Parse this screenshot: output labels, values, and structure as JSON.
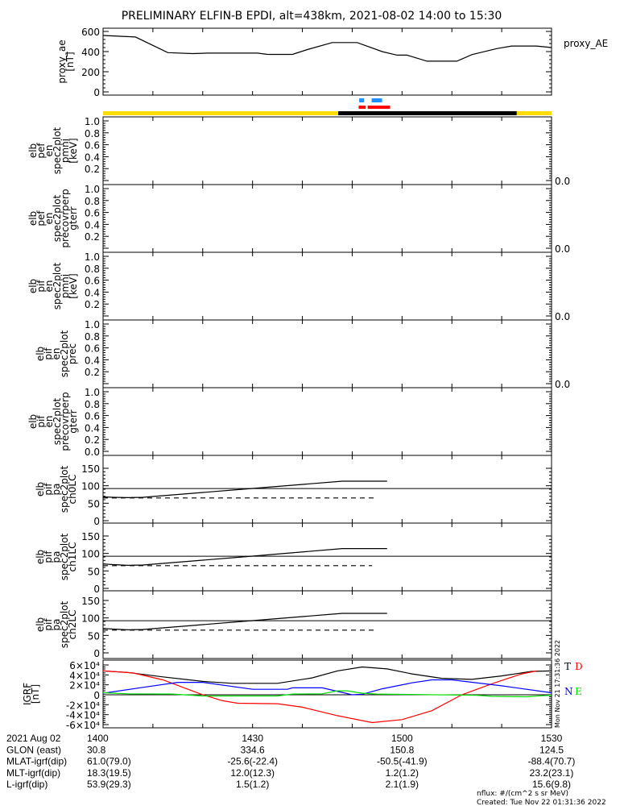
{
  "title": "PRELIMINARY ELFIN-B EPDI, alt=438km, 2021-08-02 14:00 to 15:30",
  "time_axis": {
    "start_label": "1400",
    "range_minutes": 90,
    "tick_minutes": 10
  },
  "indicators": {
    "blue_segments": [
      [
        51.4,
        52.4
      ],
      [
        53.9,
        56.0
      ]
    ],
    "red_segments": [
      [
        51.3,
        52.7
      ],
      [
        53.1,
        57.6
      ]
    ],
    "shadow_segment": [
      47.2,
      83.0
    ],
    "colors": {
      "blue": "#1e90ff",
      "red": "#ff0000",
      "sunlit": "#ffdd00",
      "shadow": "#000000"
    }
  },
  "chart_data": [
    {
      "id": "ae",
      "type": "line",
      "ylabel": [
        "proxy_ae",
        "[nT]"
      ],
      "ylim": [
        0,
        600
      ],
      "yticks": [
        {
          "v": 0,
          "label": "0"
        },
        {
          "v": 200,
          "label": "200"
        },
        {
          "v": 400,
          "label": "400"
        },
        {
          "v": 600,
          "label": "600"
        }
      ],
      "legend": "proxy_AE",
      "series": [
        {
          "name": "proxy_AE",
          "color": "#000000",
          "t": [
            0,
            6.5,
            13,
            18,
            21,
            31,
            33,
            38,
            41,
            46,
            51,
            56,
            59,
            61,
            65,
            71,
            74,
            79,
            82,
            87,
            90
          ],
          "y": [
            560,
            545,
            390,
            380,
            385,
            385,
            372,
            372,
            420,
            490,
            490,
            400,
            365,
            365,
            305,
            305,
            370,
            430,
            455,
            455,
            440
          ]
        }
      ]
    },
    {
      "id": "pef-pmni",
      "type": "line",
      "ylabel": [
        "elb",
        "pef",
        "en",
        "spec2plot",
        "pmni",
        "[keV]"
      ],
      "ylim": [
        0,
        1
      ],
      "yticks": [
        {
          "v": 0,
          "label": "0.0"
        },
        {
          "v": 0.2,
          "label": "0.2"
        },
        {
          "v": 0.4,
          "label": "0.4"
        },
        {
          "v": 0.6,
          "label": "0.6"
        },
        {
          "v": 0.8,
          "label": "0.8"
        },
        {
          "v": 1,
          "label": "1.0"
        }
      ],
      "series": []
    },
    {
      "id": "pef-gterr",
      "type": "line",
      "ylabel": [
        "elb",
        "pef",
        "en",
        "spec2plot",
        "precovrperp",
        "gterr"
      ],
      "ylim": [
        0,
        1
      ],
      "yticks": [
        {
          "v": 0,
          "label": "0.0"
        },
        {
          "v": 0.2,
          "label": "0.2"
        },
        {
          "v": 0.4,
          "label": "0.4"
        },
        {
          "v": 0.6,
          "label": "0.6"
        },
        {
          "v": 0.8,
          "label": "0.8"
        },
        {
          "v": 1,
          "label": "1.0"
        }
      ],
      "series": []
    },
    {
      "id": "pif-pmni",
      "type": "line",
      "ylabel": [
        "elb",
        "pif",
        "en",
        "spec2plot",
        "pmni",
        "[keV]"
      ],
      "ylim": [
        0,
        1
      ],
      "yticks": [
        {
          "v": 0,
          "label": "0.0"
        },
        {
          "v": 0.2,
          "label": "0.2"
        },
        {
          "v": 0.4,
          "label": "0.4"
        },
        {
          "v": 0.6,
          "label": "0.6"
        },
        {
          "v": 0.8,
          "label": "0.8"
        },
        {
          "v": 1,
          "label": "1.0"
        }
      ],
      "series": []
    },
    {
      "id": "pif-prec",
      "type": "line",
      "ylabel": [
        "elb",
        "pif",
        "en",
        "spec2plot",
        "prec"
      ],
      "ylim": [
        0,
        1
      ],
      "yticks": [
        {
          "v": 0,
          "label": "0.0"
        },
        {
          "v": 0.2,
          "label": "0.2"
        },
        {
          "v": 0.4,
          "label": "0.4"
        },
        {
          "v": 0.6,
          "label": "0.6"
        },
        {
          "v": 0.8,
          "label": "0.8"
        },
        {
          "v": 1,
          "label": "1.0"
        }
      ],
      "series": []
    },
    {
      "id": "pif-gterr",
      "type": "line",
      "ylabel": [
        "elb",
        "pif",
        "en",
        "spec2plot",
        "precovrperp",
        "gterr"
      ],
      "ylim": [
        0,
        1
      ],
      "yticks": [
        {
          "v": 0,
          "label": "0.0"
        },
        {
          "v": 0.2,
          "label": "0.2"
        },
        {
          "v": 0.4,
          "label": "0.4"
        },
        {
          "v": 0.6,
          "label": "0.6"
        },
        {
          "v": 0.8,
          "label": "0.8"
        },
        {
          "v": 1,
          "label": "1.0"
        }
      ],
      "series": []
    },
    {
      "id": "pa-ch0",
      "type": "line",
      "ylabel": [
        "elb",
        "pif",
        "pa",
        "spec2plot",
        "ch0LC"
      ],
      "ylim": [
        0,
        150
      ],
      "yticks": [
        {
          "v": 0,
          "label": "0"
        },
        {
          "v": 50,
          "label": "50"
        },
        {
          "v": 100,
          "label": "100"
        },
        {
          "v": 150,
          "label": "150"
        }
      ],
      "hline": 92,
      "series": [
        {
          "name": "pa",
          "color": "#000000",
          "t": [
            0,
            2,
            5,
            8,
            28,
            48,
            57
          ],
          "y": [
            68,
            67,
            66,
            67,
            90,
            113,
            113
          ]
        },
        {
          "name": "lc",
          "color": "#000000",
          "dashed": true,
          "t": [
            0,
            55
          ],
          "y": [
            65,
            65
          ]
        }
      ]
    },
    {
      "id": "pa-ch1",
      "type": "line",
      "ylabel": [
        "elb",
        "pif",
        "pa",
        "spec2plot",
        "ch1LC"
      ],
      "ylim": [
        0,
        150
      ],
      "yticks": [
        {
          "v": 0,
          "label": "0"
        },
        {
          "v": 50,
          "label": "50"
        },
        {
          "v": 100,
          "label": "100"
        },
        {
          "v": 150,
          "label": "150"
        }
      ],
      "hline": 92,
      "series": [
        {
          "name": "pa",
          "color": "#000000",
          "t": [
            0,
            2,
            5,
            8,
            28,
            48,
            57
          ],
          "y": [
            70,
            68,
            66,
            67,
            90,
            114,
            114
          ]
        },
        {
          "name": "lc",
          "color": "#000000",
          "dashed": true,
          "t": [
            0,
            54
          ],
          "y": [
            65,
            65
          ]
        }
      ]
    },
    {
      "id": "pa-ch2",
      "type": "line",
      "ylabel": [
        "elb",
        "pif",
        "pa",
        "spec2plot",
        "ch2LC"
      ],
      "ylim": [
        0,
        150
      ],
      "yticks": [
        {
          "v": 0,
          "label": "0"
        },
        {
          "v": 50,
          "label": "50"
        },
        {
          "v": 100,
          "label": "100"
        },
        {
          "v": 150,
          "label": "150"
        }
      ],
      "hline": 92,
      "series": [
        {
          "name": "pa",
          "color": "#000000",
          "t": [
            0,
            2,
            5,
            8,
            28,
            48,
            57
          ],
          "y": [
            70,
            68,
            66,
            67,
            90,
            113,
            113
          ]
        },
        {
          "name": "lc",
          "color": "#000000",
          "dashed": true,
          "t": [
            0,
            55
          ],
          "y": [
            65,
            65
          ]
        }
      ]
    },
    {
      "id": "igrf",
      "type": "line",
      "ylabel": [
        "IGRF",
        "[nT]"
      ],
      "ylim": [
        -60000,
        60000
      ],
      "yticks": [
        {
          "v": -60000,
          "label": "-6×10⁴"
        },
        {
          "v": -40000,
          "label": "-4×10⁴"
        },
        {
          "v": -20000,
          "label": "-2×10⁴"
        },
        {
          "v": 0,
          "label": "0"
        },
        {
          "v": 20000,
          "label": "2×10⁴"
        },
        {
          "v": 40000,
          "label": "4×10⁴"
        },
        {
          "v": 60000,
          "label": "6×10⁴"
        }
      ],
      "hline": 0,
      "legend_letters": [
        {
          "text": "T",
          "color": "#000000"
        },
        {
          "text": "D",
          "color": "#ff0000"
        },
        {
          "text": "N",
          "color": "#0000ff"
        },
        {
          "text": "E",
          "color": "#00dd00"
        }
      ],
      "series": [
        {
          "name": "T",
          "color": "#000000",
          "t": [
            0,
            5,
            12,
            20,
            26,
            35,
            42,
            47,
            52,
            57,
            62,
            68,
            74,
            80,
            86,
            90
          ],
          "y": [
            48000,
            45000,
            36000,
            27000,
            23000,
            23000,
            34000,
            48000,
            56000,
            52000,
            42000,
            33000,
            31000,
            38000,
            47000,
            48000
          ]
        },
        {
          "name": "D",
          "color": "#ff0000",
          "t": [
            0,
            6,
            12,
            20,
            24,
            27,
            35,
            40,
            47,
            54,
            60,
            66,
            72,
            78,
            84,
            87
          ],
          "y": [
            48000,
            44000,
            30000,
            0,
            -12000,
            -17000,
            -18000,
            -25000,
            -42000,
            -56000,
            -50000,
            -32000,
            0,
            22000,
            42000,
            48000
          ]
        },
        {
          "name": "N",
          "color": "#0000ff",
          "t": [
            0,
            8,
            15,
            20,
            30,
            37,
            38,
            44,
            50,
            52,
            56,
            62,
            66,
            70,
            80,
            90
          ],
          "y": [
            3000,
            15000,
            25000,
            25000,
            11000,
            11000,
            14000,
            14000,
            0,
            1000,
            12000,
            24000,
            30000,
            30000,
            18000,
            4000
          ]
        },
        {
          "name": "E",
          "color": "#00dd00",
          "t": [
            0,
            5,
            14,
            20,
            35,
            38,
            44,
            47,
            49,
            52,
            55,
            75,
            78,
            85,
            88,
            90
          ],
          "y": [
            4000,
            2000,
            1500,
            -2500,
            -2500,
            1500,
            2000,
            8000,
            8000,
            3000,
            1500,
            -1000,
            -3000,
            -4000,
            -2000,
            -1000
          ]
        }
      ]
    }
  ],
  "footer_table": {
    "rows": [
      {
        "label": "2021 Aug 02",
        "values": [
          "1400",
          "1430",
          "1500",
          "1530"
        ]
      },
      {
        "label": "GLON (east)",
        "values": [
          "30.8",
          "334.6",
          "150.8",
          "124.5"
        ]
      },
      {
        "label": "MLAT-igrf(dip)",
        "values": [
          "61.0(79.0)",
          "-25.6(-22.4)",
          "-50.5(-41.9)",
          "-88.4(70.7)"
        ]
      },
      {
        "label": "MLT-igrf(dip)",
        "values": [
          "18.3(19.5)",
          "12.0(12.3)",
          "1.2(1.2)",
          "23.2(23.1)"
        ]
      },
      {
        "label": "L-igrf(dip)",
        "values": [
          "53.9(29.3)",
          "1.5(1.2)",
          "2.1(1.9)",
          "15.6(9.8)"
        ]
      }
    ]
  },
  "side_stamp": "Mon Nov 21 17:31:36 2022",
  "nflux_units": "nflux: #/(cm^2 s sr MeV)",
  "created": "Created: Tue Nov 22 01:31:36 2022"
}
